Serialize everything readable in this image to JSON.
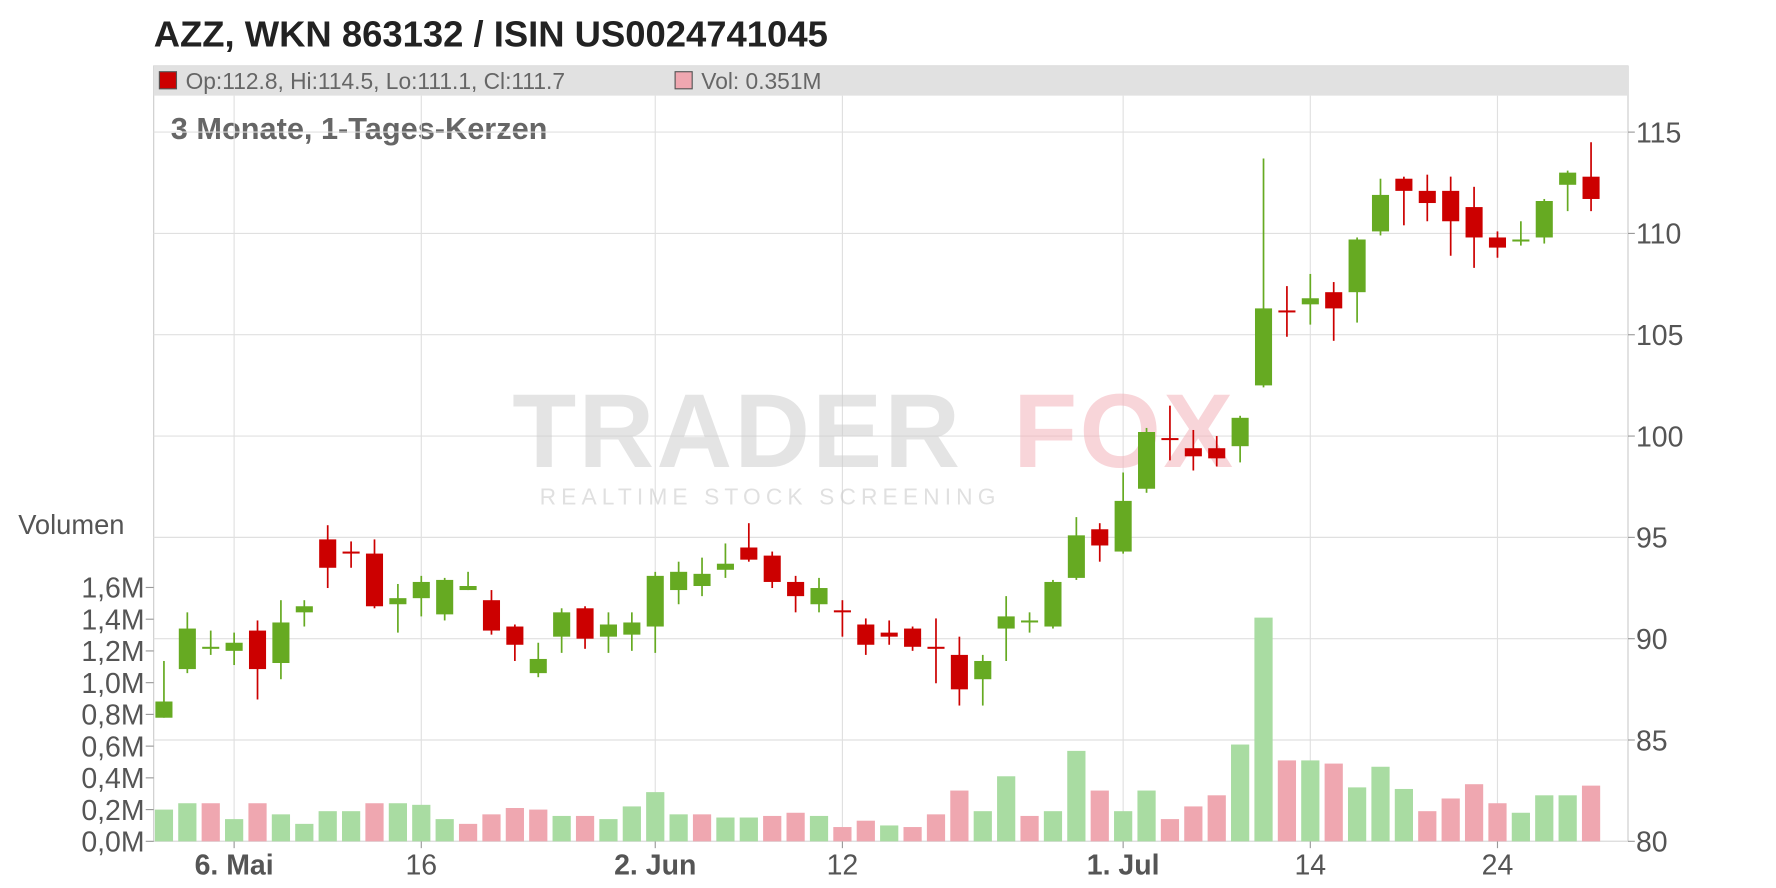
{
  "chart_data": {
    "type": "candlestick",
    "title": "AZZ, WKN 863132 / ISIN US0024741045",
    "legend_price": "Op:112.8, Hi:114.5, Lo:111.1, Cl:111.7",
    "legend_volume": "Vol: 0.351M",
    "subtitle": "3 Monate, 1-Tages-Kerzen",
    "y2_label": "Volumen",
    "watermark": [
      "TRADER",
      "FOX",
      "REALTIME STOCK SCREENING"
    ],
    "categories": [
      null,
      null,
      null,
      "6. Mai",
      null,
      null,
      null,
      null,
      null,
      null,
      null,
      "16",
      null,
      null,
      null,
      null,
      null,
      null,
      null,
      null,
      null,
      "2. Jun",
      null,
      null,
      null,
      null,
      null,
      null,
      null,
      "12",
      null,
      null,
      null,
      null,
      null,
      null,
      null,
      null,
      null,
      null,
      null,
      "1. Jul",
      null,
      null,
      null,
      null,
      null,
      null,
      null,
      "14",
      null,
      null,
      null,
      null,
      null,
      null,
      null,
      "24",
      null,
      null,
      null,
      null
    ],
    "open": [
      86.1,
      88.5,
      89.5,
      89.4,
      90.4,
      88.8,
      91.3,
      94.9,
      94.3,
      94.2,
      91.7,
      92.0,
      91.2,
      92.4,
      91.9,
      90.6,
      88.3,
      90.1,
      91.5,
      90.1,
      90.2,
      90.6,
      92.4,
      92.6,
      93.4,
      94.5,
      94.1,
      92.8,
      91.7,
      91.4,
      90.7,
      90.3,
      90.5,
      89.6,
      89.2,
      88.0,
      90.5,
      90.8,
      90.6,
      93.0,
      95.4,
      94.3,
      97.4,
      99.9,
      99.4,
      99.4,
      99.5,
      102.5,
      106.2,
      106.5,
      107.1,
      107.1,
      110.1,
      112.7,
      112.1,
      112.1,
      111.3,
      109.8,
      109.6,
      109.8,
      112.4,
      112.8
    ],
    "high": [
      88.9,
      91.3,
      90.4,
      90.3,
      90.9,
      91.9,
      91.9,
      95.6,
      94.8,
      94.9,
      92.7,
      93.1,
      93.0,
      93.3,
      92.4,
      90.7,
      89.8,
      91.5,
      91.6,
      91.3,
      91.3,
      93.3,
      93.8,
      94.0,
      94.7,
      95.7,
      94.3,
      93.1,
      93.0,
      91.9,
      91.0,
      90.9,
      90.6,
      91.0,
      90.1,
      89.2,
      92.1,
      91.3,
      92.9,
      96.0,
      95.7,
      98.2,
      100.4,
      101.5,
      100.3,
      100.0,
      101.0,
      113.7,
      107.4,
      108.0,
      107.6,
      109.8,
      112.7,
      112.8,
      112.9,
      112.8,
      112.3,
      110.1,
      110.6,
      111.7,
      113.1,
      114.5
    ],
    "low": [
      86.1,
      88.3,
      89.2,
      88.7,
      87.0,
      88.0,
      90.6,
      92.5,
      93.5,
      91.5,
      90.3,
      91.1,
      90.9,
      92.4,
      90.2,
      88.9,
      88.1,
      89.3,
      89.5,
      89.3,
      89.4,
      89.3,
      91.7,
      92.1,
      93.0,
      93.8,
      92.5,
      91.3,
      91.3,
      90.1,
      89.2,
      89.7,
      89.4,
      87.8,
      86.7,
      86.7,
      88.9,
      90.3,
      90.5,
      92.9,
      93.8,
      94.2,
      97.2,
      98.8,
      98.3,
      98.5,
      98.7,
      102.4,
      104.9,
      105.5,
      104.7,
      105.6,
      109.9,
      110.4,
      110.6,
      108.9,
      108.3,
      108.8,
      109.4,
      109.5,
      111.1,
      111.1
    ],
    "close": [
      86.9,
      90.5,
      89.6,
      89.8,
      88.5,
      90.8,
      91.6,
      93.5,
      94.2,
      91.6,
      92.0,
      92.8,
      92.9,
      92.6,
      90.4,
      89.7,
      89.0,
      91.3,
      90.0,
      90.7,
      90.8,
      93.1,
      93.3,
      93.2,
      93.7,
      93.9,
      92.8,
      92.1,
      92.5,
      91.3,
      89.7,
      90.1,
      89.6,
      89.5,
      87.5,
      88.9,
      91.1,
      90.9,
      92.8,
      95.1,
      94.6,
      96.8,
      100.2,
      99.8,
      99.0,
      98.9,
      100.9,
      106.3,
      106.1,
      106.8,
      106.3,
      109.7,
      111.9,
      112.1,
      111.5,
      110.6,
      109.8,
      109.3,
      109.7,
      111.6,
      113.0,
      111.7
    ],
    "volume": [
      0.2,
      0.24,
      0.24,
      0.14,
      0.24,
      0.17,
      0.11,
      0.19,
      0.19,
      0.24,
      0.24,
      0.23,
      0.14,
      0.11,
      0.17,
      0.21,
      0.2,
      0.16,
      0.16,
      0.14,
      0.22,
      0.31,
      0.17,
      0.17,
      0.15,
      0.15,
      0.16,
      0.18,
      0.16,
      0.09,
      0.13,
      0.1,
      0.09,
      0.17,
      0.32,
      0.19,
      0.41,
      0.16,
      0.19,
      0.57,
      0.32,
      0.19,
      0.32,
      0.14,
      0.22,
      0.29,
      0.61,
      1.41,
      0.51,
      0.51,
      0.49,
      0.34,
      0.47,
      0.33,
      0.19,
      0.27,
      0.36,
      0.24,
      0.18,
      0.29,
      0.29,
      0.351
    ],
    "ylim": [
      80,
      116.8
    ],
    "yticks": [
      80,
      85,
      90,
      95,
      100,
      105,
      110,
      115
    ],
    "y2lim": [
      0,
      4.7
    ],
    "y2ticks": [
      {
        "value": 0,
        "label": "0,0M"
      },
      {
        "value": 0.2,
        "label": "0,2M"
      },
      {
        "value": 0.4,
        "label": "0,4M"
      },
      {
        "value": 0.6,
        "label": "0,6M"
      },
      {
        "value": 0.8,
        "label": "0,8M"
      },
      {
        "value": 1.0,
        "label": "1,0M"
      },
      {
        "value": 1.2,
        "label": "1,2M"
      },
      {
        "value": 1.4,
        "label": "1,4M"
      },
      {
        "value": 1.6,
        "label": "1,6M"
      }
    ],
    "grid": true,
    "colors": {
      "up": "#66aa22",
      "down": "#cc0000",
      "volume_up": "#a9dca2",
      "volume_down": "#efa7b0"
    }
  }
}
